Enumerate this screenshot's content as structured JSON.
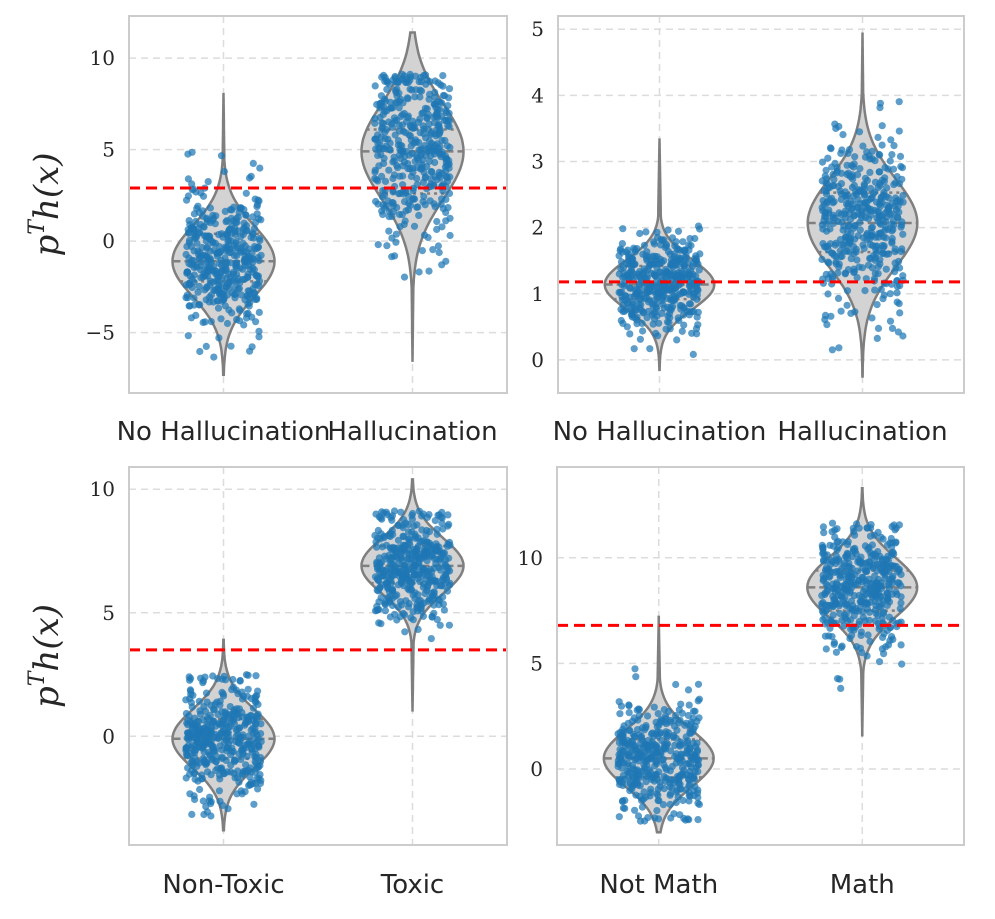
{
  "chart_data": [
    {
      "type": "violin",
      "ylabel": "p^T h(x)",
      "ylabel_base": "p",
      "ylabel_sup": "T",
      "ylabel_rest": "h(x)",
      "categories": [
        "No Hallucination",
        "Hallucination"
      ],
      "ylim": [
        -8.3,
        12.3
      ],
      "yticks": [
        -5,
        0,
        5,
        10
      ],
      "ytick_labels": [
        "−5",
        "0",
        "5",
        "10"
      ],
      "threshold": 2.9,
      "grid": true,
      "violins": [
        {
          "category": "No Hallucination",
          "q1": -2.2,
          "median": -1.1,
          "q3": 0.4,
          "min": -7.3,
          "max": 8.1
        },
        {
          "category": "Hallucination",
          "q1": 2.6,
          "median": 4.9,
          "q3": 6.1,
          "min": -6.6,
          "max": 11.4
        }
      ],
      "colors": {
        "violin_fill": "#d3d3d3",
        "violin_edge": "#7f7f7f",
        "points": "#1f77b4",
        "threshold": "#ff0000"
      }
    },
    {
      "type": "violin",
      "ylabel": "",
      "categories": [
        "No Hallucination",
        "Hallucination"
      ],
      "ylim": [
        -0.5,
        5.2
      ],
      "yticks": [
        0,
        1,
        2,
        3,
        4,
        5
      ],
      "ytick_labels": [
        "0",
        "1",
        "2",
        "3",
        "4",
        "5"
      ],
      "threshold": 1.18,
      "grid": true,
      "violins": [
        {
          "category": "No Hallucination",
          "q1": 0.92,
          "median": 1.14,
          "q3": 1.42,
          "min": -0.15,
          "max": 3.35
        },
        {
          "category": "Hallucination",
          "q1": 1.63,
          "median": 2.07,
          "q3": 2.53,
          "min": -0.25,
          "max": 4.95
        }
      ],
      "colors": {
        "violin_fill": "#d3d3d3",
        "violin_edge": "#7f7f7f",
        "points": "#1f77b4",
        "threshold": "#ff0000"
      }
    },
    {
      "type": "violin",
      "ylabel": "p^T h(x)",
      "ylabel_base": "p",
      "ylabel_sup": "T",
      "ylabel_rest": "h(x)",
      "categories": [
        "Non-Toxic",
        "Toxic"
      ],
      "ylim": [
        -4.4,
        10.9
      ],
      "yticks": [
        0,
        5,
        10
      ],
      "ytick_labels": [
        "0",
        "5",
        "10"
      ],
      "threshold": 3.5,
      "grid": true,
      "violins": [
        {
          "category": "Non-Toxic",
          "q1": -0.9,
          "median": -0.1,
          "q3": 0.7,
          "min": -3.8,
          "max": 3.9
        },
        {
          "category": "Toxic",
          "q1": 6.2,
          "median": 6.9,
          "q3": 7.7,
          "min": 1.0,
          "max": 10.4
        }
      ],
      "colors": {
        "violin_fill": "#d3d3d3",
        "violin_edge": "#7f7f7f",
        "points": "#1f77b4",
        "threshold": "#ff0000"
      }
    },
    {
      "type": "violin",
      "ylabel": "",
      "categories": [
        "Not Math",
        "Math"
      ],
      "ylim": [
        -3.6,
        14.3
      ],
      "yticks": [
        0,
        5,
        10
      ],
      "ytick_labels": [
        "0",
        "5",
        "10"
      ],
      "threshold": 6.8,
      "grid": true,
      "violins": [
        {
          "category": "Not Math",
          "q1": -0.4,
          "median": 0.5,
          "q3": 1.4,
          "min": -3.0,
          "max": 7.2
        },
        {
          "category": "Math",
          "q1": 7.5,
          "median": 8.6,
          "q3": 9.4,
          "min": 1.6,
          "max": 13.3
        }
      ],
      "colors": {
        "violin_fill": "#d3d3d3",
        "violin_edge": "#7f7f7f",
        "points": "#1f77b4",
        "threshold": "#ff0000"
      }
    }
  ]
}
